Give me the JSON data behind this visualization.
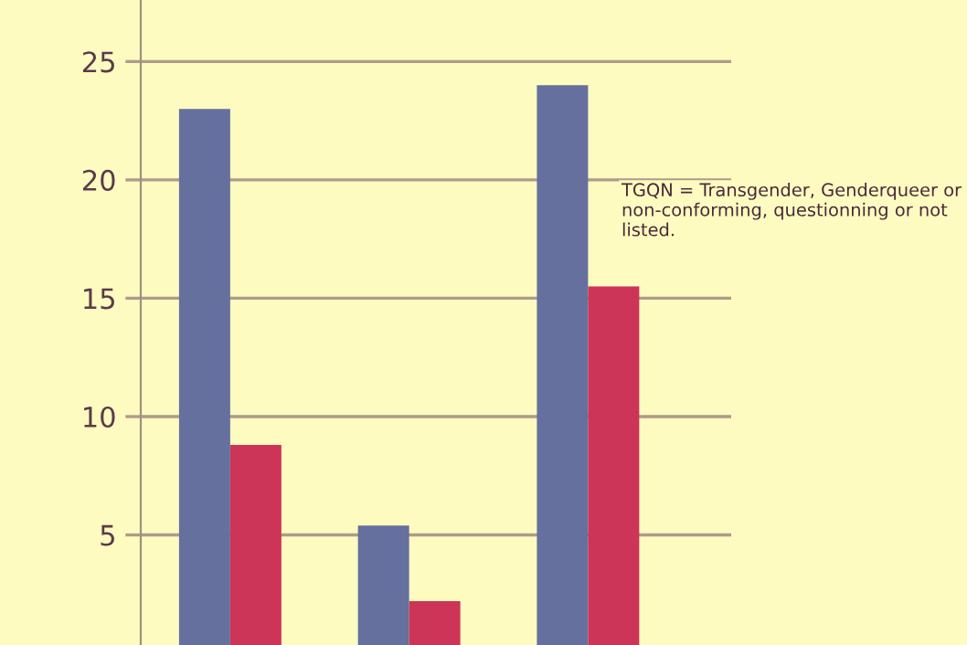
{
  "chart_data": {
    "type": "bar",
    "categories": [
      null,
      null,
      null
    ],
    "series": [
      {
        "color": "#65709e",
        "values": [
          23,
          5.4,
          24
        ]
      },
      {
        "color": "#cc3558",
        "values": [
          8.8,
          2.2,
          15.5
        ]
      }
    ],
    "ylim": [
      0.35,
      27.6
    ],
    "yticks": [
      5,
      10,
      15,
      20,
      25
    ],
    "grid": "y",
    "tick_labels": "y",
    "annotations": [
      "TGQN = Transgender, Genderqueer or non-conforming, questionning or not listed."
    ]
  }
}
